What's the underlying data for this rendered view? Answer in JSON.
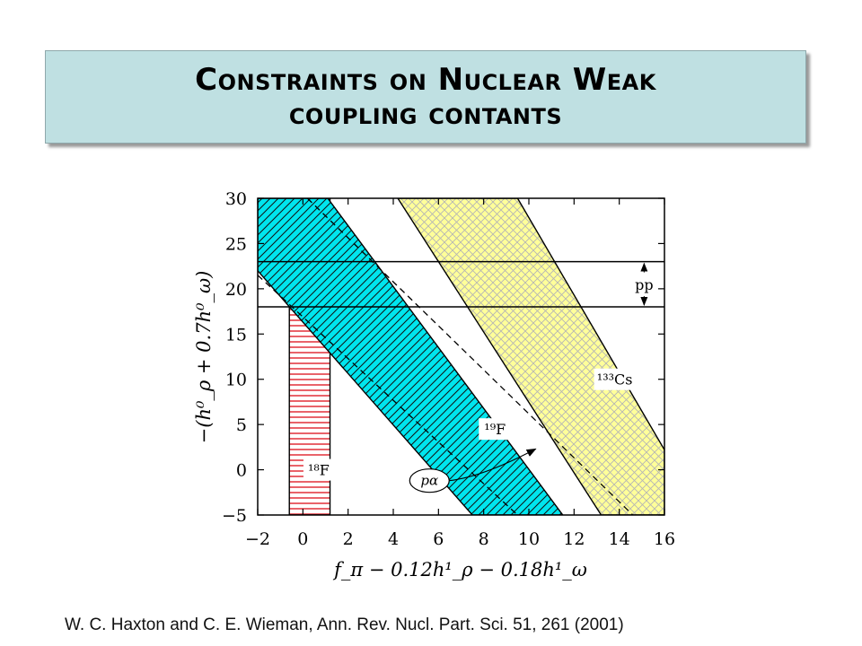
{
  "title": {
    "line1": "Constraints on Nuclear Weak",
    "line2": "coupling contants"
  },
  "citation": "W. C. Haxton and C. E. Wieman, Ann. Rev. Nucl. Part. Sci. 51, 261 (2001)",
  "chart_data": {
    "type": "area",
    "xlabel": "f_π − 0.12h¹_ρ − 0.18h¹_ω",
    "ylabel": "−(h⁰_ρ + 0.7h⁰_ω)",
    "xlim": [
      -2,
      16
    ],
    "ylim": [
      -5,
      30
    ],
    "xticks": [
      -2,
      0,
      2,
      4,
      6,
      8,
      10,
      12,
      14,
      16
    ],
    "yticks": [
      -5,
      0,
      5,
      10,
      15,
      20,
      25,
      30
    ],
    "grid": false,
    "constraints": [
      {
        "name": "18F",
        "label": "¹⁸F",
        "shape": "vertical-band",
        "x_range": [
          -0.6,
          1.2
        ],
        "fill": "#ffffff",
        "hatch": "horizontal",
        "hatch_color": "#e0202a"
      },
      {
        "name": "19F",
        "label": "¹⁹F",
        "shape": "diagonal-band",
        "polygon": [
          [
            -2,
            30
          ],
          [
            1.1,
            30
          ],
          [
            11.5,
            -5
          ],
          [
            7.5,
            -5
          ],
          [
            -2,
            22
          ]
        ],
        "fill": "#00e5ee",
        "hatch": "diagonal",
        "hatch_color": "#000000"
      },
      {
        "name": "133Cs",
        "label": "¹³³Cs",
        "shape": "diagonal-band",
        "polygon": [
          [
            4.2,
            30
          ],
          [
            9.5,
            30
          ],
          [
            16,
            2.2
          ],
          [
            16,
            -5
          ],
          [
            13.2,
            -5
          ]
        ],
        "fill": "#ffff99",
        "hatch": "crosshatch",
        "hatch_color": "#b8b8b8"
      },
      {
        "name": "pp",
        "label": "pp",
        "shape": "horizontal-band",
        "y_range": [
          18,
          23
        ],
        "fill": "none"
      }
    ],
    "dashed_lines": [
      {
        "name": "dashed-upper",
        "points": [
          [
            0.2,
            30
          ],
          [
            14.6,
            -5
          ]
        ]
      },
      {
        "name": "dashed-lower",
        "points": [
          [
            -2,
            21.5
          ],
          [
            9.5,
            -5
          ]
        ]
      }
    ],
    "annotations": [
      {
        "name": "p-alpha",
        "label": "pα",
        "point": [
          5.6,
          -1.2
        ],
        "arrow_to": [
          10.3,
          2.3
        ]
      }
    ]
  }
}
